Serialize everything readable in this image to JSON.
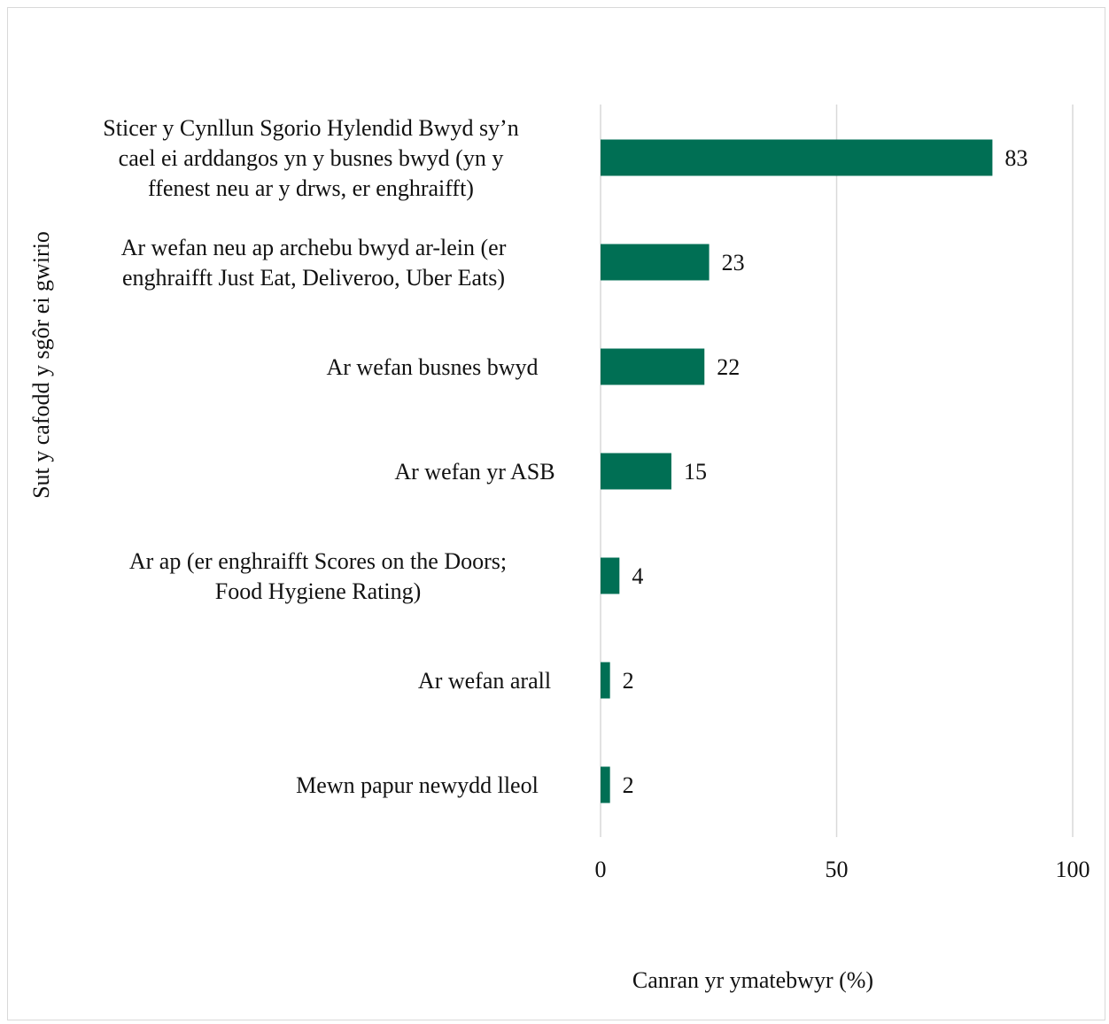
{
  "chart_data": {
    "type": "bar",
    "orientation": "horizontal",
    "categories": [
      [
        "Sticer y Cynllun Sgorio Hylendid Bwyd sy’n",
        "cael ei arddangos yn y busnes bwyd (yn y",
        "ffenest neu ar y drws, er enghraifft)"
      ],
      [
        "Ar wefan neu ap archebu bwyd ar-lein (er",
        "enghraifft Just Eat, Deliveroo, Uber Eats)"
      ],
      [
        "Ar wefan busnes bwyd"
      ],
      [
        "Ar wefan yr ASB"
      ],
      [
        "Ar ap (er enghraifft Scores on the Doors;",
        "Food Hygiene Rating)"
      ],
      [
        "Ar wefan arall"
      ],
      [
        "Mewn papur newydd lleol"
      ]
    ],
    "values": [
      83,
      23,
      22,
      15,
      4,
      2,
      2
    ],
    "data_labels": [
      "83",
      "23",
      "22",
      "15",
      "4",
      "2",
      "2"
    ],
    "xlim": [
      0,
      100
    ],
    "ticks": [
      "0",
      "50",
      "100"
    ],
    "tick_values": [
      0,
      50,
      100
    ],
    "xlabel": "Canran yr ymatebwyr (%)",
    "ylabel": "Sut y cafodd y sgôr ei gwirio",
    "grid": true,
    "colors": {
      "bar": "#006f54",
      "grid": "#d9d9d9",
      "border": "#d9d9d9"
    }
  }
}
